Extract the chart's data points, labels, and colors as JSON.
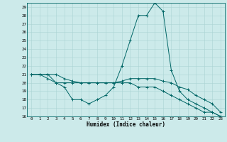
{
  "title": "",
  "xlabel": "Humidex (Indice chaleur)",
  "background_color": "#cceaea",
  "grid_color": "#aad4d4",
  "line_color": "#006666",
  "x": [
    0,
    1,
    2,
    3,
    4,
    5,
    6,
    7,
    8,
    9,
    10,
    11,
    12,
    13,
    14,
    15,
    16,
    17,
    18,
    19,
    20,
    21,
    22,
    23
  ],
  "line1": [
    21,
    21,
    20.5,
    20,
    20,
    20,
    20,
    20,
    20,
    20,
    20,
    20,
    20,
    19.5,
    19.5,
    19.5,
    19,
    18.5,
    18,
    17.5,
    17,
    16.5,
    16.5,
    16
  ],
  "line2": [
    21,
    21,
    21,
    20,
    19.5,
    18,
    18,
    17.5,
    18,
    18.5,
    19.5,
    22,
    25,
    28,
    28,
    29.5,
    28.5,
    21.5,
    19,
    18,
    17.5,
    17,
    16.5,
    16
  ],
  "line3": [
    21,
    21,
    21,
    21,
    20.5,
    20.2,
    20,
    20,
    20,
    20,
    20,
    20.2,
    20.5,
    20.5,
    20.5,
    20.5,
    20.2,
    20,
    19.5,
    19.2,
    18.5,
    18,
    17.5,
    16.5
  ],
  "xlim": [
    -0.5,
    23.5
  ],
  "ylim": [
    16,
    29.5
  ],
  "yticks": [
    16,
    17,
    18,
    19,
    20,
    21,
    22,
    23,
    24,
    25,
    26,
    27,
    28,
    29
  ],
  "xticks": [
    0,
    1,
    2,
    3,
    4,
    5,
    6,
    7,
    8,
    9,
    10,
    11,
    12,
    13,
    14,
    15,
    16,
    17,
    18,
    19,
    20,
    21,
    22,
    23
  ]
}
